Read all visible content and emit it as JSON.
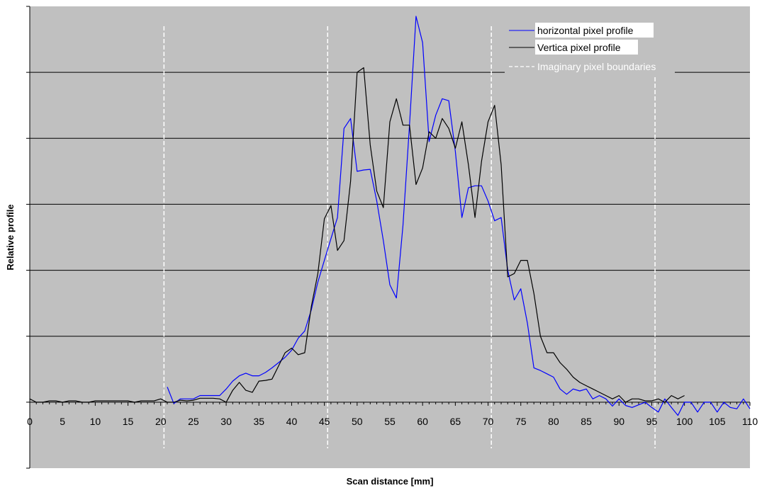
{
  "chart_data": {
    "type": "line",
    "xlabel": "Scan distance [mm]",
    "ylabel": "Relative profile",
    "xlim": [
      0,
      110
    ],
    "ylim": [
      -1,
      6
    ],
    "x_ticks": [
      0,
      5,
      10,
      15,
      20,
      25,
      30,
      35,
      40,
      45,
      50,
      55,
      60,
      65,
      70,
      75,
      80,
      85,
      90,
      95,
      100,
      105,
      110
    ],
    "y_gridlines": [
      1,
      2,
      3,
      4,
      5
    ],
    "grid": true,
    "legend_position": "top-right",
    "background_color": "#c0c0c0",
    "series": [
      {
        "name": "horizontal pixel profile",
        "color": "#0000ff",
        "x": [
          21,
          22,
          23,
          24,
          25,
          26,
          27,
          28,
          29,
          30,
          31,
          32,
          33,
          34,
          35,
          36,
          37,
          38,
          39,
          40,
          41,
          42,
          43,
          44,
          45,
          46,
          47,
          48,
          49,
          50,
          51,
          52,
          53,
          54,
          55,
          56,
          57,
          58,
          59,
          60,
          61,
          62,
          63,
          64,
          65,
          66,
          67,
          68,
          69,
          70,
          71,
          72,
          73,
          74,
          75,
          76,
          77,
          78,
          79,
          80,
          81,
          82,
          83,
          84,
          85,
          86,
          87,
          88,
          89,
          90,
          91,
          92,
          93,
          94,
          95,
          96,
          97,
          98,
          99,
          100,
          101,
          102,
          103,
          104,
          105,
          106,
          107,
          108,
          109,
          110
        ],
        "y": [
          0.23,
          -0.02,
          0.05,
          0.05,
          0.05,
          0.1,
          0.1,
          0.1,
          0.1,
          0.2,
          0.32,
          0.4,
          0.44,
          0.4,
          0.4,
          0.45,
          0.52,
          0.6,
          0.68,
          0.79,
          0.97,
          1.08,
          1.4,
          1.82,
          2.15,
          2.48,
          2.8,
          4.15,
          4.3,
          3.5,
          3.52,
          3.53,
          3.05,
          2.45,
          1.78,
          1.58,
          2.68,
          4.2,
          5.85,
          5.45,
          3.95,
          4.35,
          4.6,
          4.57,
          3.8,
          2.8,
          3.25,
          3.28,
          3.28,
          3.05,
          2.75,
          2.8,
          2.0,
          1.55,
          1.72,
          1.2,
          0.52,
          0.48,
          0.43,
          0.38,
          0.2,
          0.12,
          0.2,
          0.17,
          0.2,
          0.05,
          0.1,
          0.05,
          -0.06,
          0.05,
          -0.05,
          -0.08,
          -0.04,
          0.0,
          -0.08,
          -0.15,
          0.05,
          -0.08,
          -0.2,
          0.0,
          0.0,
          -0.15,
          0.0,
          0.0,
          -0.15,
          0.0,
          -0.08,
          -0.1,
          0.05,
          -0.1
        ]
      },
      {
        "name": "Vertica pixel profile",
        "color": "#000000",
        "x": [
          0,
          1,
          2,
          3,
          4,
          5,
          6,
          7,
          8,
          9,
          10,
          11,
          12,
          13,
          14,
          15,
          16,
          17,
          18,
          19,
          20,
          21,
          22,
          23,
          24,
          25,
          26,
          27,
          28,
          29,
          30,
          31,
          32,
          33,
          34,
          35,
          36,
          37,
          38,
          39,
          40,
          41,
          42,
          43,
          44,
          45,
          46,
          47,
          48,
          49,
          50,
          51,
          52,
          53,
          54,
          55,
          56,
          57,
          58,
          59,
          60,
          61,
          62,
          63,
          64,
          65,
          66,
          67,
          68,
          69,
          70,
          71,
          72,
          73,
          74,
          75,
          76,
          77,
          78,
          79,
          80,
          81,
          82,
          83,
          84,
          85,
          86,
          87,
          88,
          89,
          90,
          91,
          92,
          93,
          94,
          95,
          96,
          97,
          98,
          99,
          100
        ],
        "y": [
          0.05,
          0.0,
          0.0,
          0.02,
          0.02,
          0.0,
          0.02,
          0.02,
          0.0,
          0.0,
          0.02,
          0.02,
          0.02,
          0.02,
          0.02,
          0.02,
          0.0,
          0.02,
          0.02,
          0.02,
          0.05,
          0.0,
          0.0,
          0.03,
          0.02,
          0.03,
          0.06,
          0.06,
          0.06,
          0.05,
          0.0,
          0.18,
          0.3,
          0.18,
          0.15,
          0.32,
          0.33,
          0.35,
          0.55,
          0.75,
          0.82,
          0.72,
          0.75,
          1.45,
          1.95,
          2.78,
          2.98,
          2.3,
          2.45,
          3.35,
          5.0,
          5.07,
          3.9,
          3.2,
          2.95,
          4.25,
          4.6,
          4.2,
          4.2,
          3.3,
          3.55,
          4.1,
          4.0,
          4.3,
          4.15,
          3.85,
          4.25,
          3.6,
          2.8,
          3.65,
          4.25,
          4.5,
          3.6,
          1.9,
          1.95,
          2.15,
          2.15,
          1.65,
          1.0,
          0.75,
          0.75,
          0.6,
          0.5,
          0.38,
          0.3,
          0.25,
          0.2,
          0.15,
          0.1,
          0.05,
          0.1,
          0.0,
          0.05,
          0.05,
          0.02,
          0.02,
          0.05,
          0.0,
          0.1,
          0.05,
          0.1
        ]
      }
    ],
    "reference_lines": {
      "name": "Imaginary pixel boundaries",
      "color": "#ffffff",
      "x": [
        20.5,
        45.5,
        70.5,
        95.5
      ]
    }
  }
}
